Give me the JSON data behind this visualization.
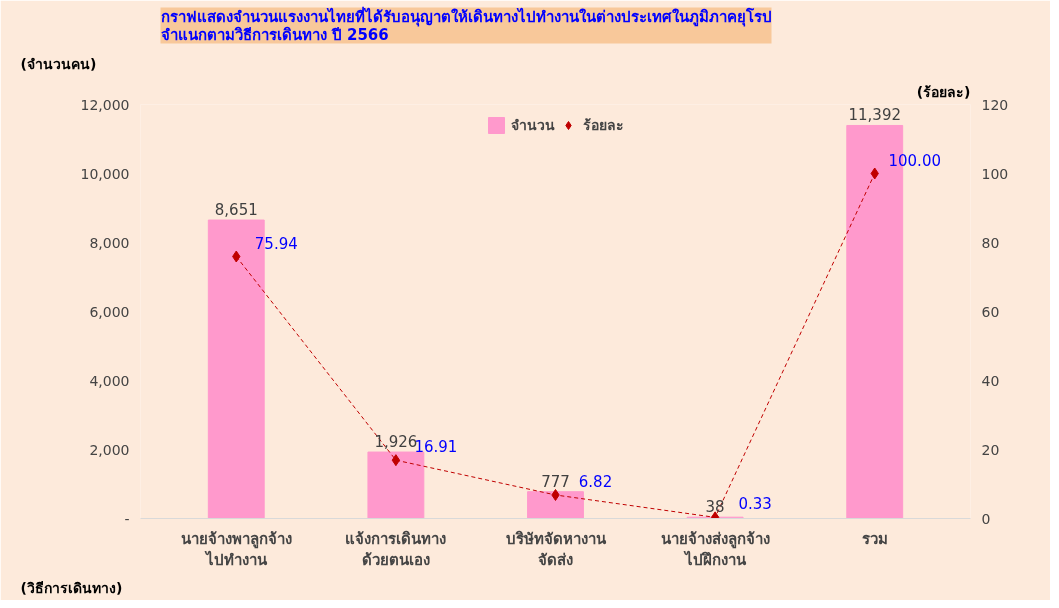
{
  "chart_data": {
    "type": "bar",
    "title": "กราฟแสดงจำนวนแรงงานไทยที่ได้รับอนุญาตให้เดินทางไปทำงานในต่างประเทศในภูมิภาคยุโรป\nจำแนกตามวิธีการเดินทาง  ปี 2566",
    "xlabel": "(วิธีการเดินทาง)",
    "ylabel": "(จำนวนคน)",
    "y2label": "(ร้อยละ)",
    "categories": [
      "นายจ้างพาลูกจ้าง\nไปทำงาน",
      "แจ้งการเดินทาง\nด้วยตนเอง",
      "บริษัทจัดหางาน\nจัดส่ง",
      "นายจ้างส่งลูกจ้าง\nไปฝึกงาน",
      "รวม"
    ],
    "series": [
      {
        "name": "จำนวน",
        "color": "#ff99cc",
        "values": [
          8651,
          1926,
          777,
          38,
          11392
        ],
        "value_labels": [
          "8,651",
          "1,926",
          "777",
          "38",
          "11,392"
        ]
      },
      {
        "name": "ร้อยละ",
        "type": "line",
        "axis": "y2",
        "color": "#c00000",
        "marker": "diamond",
        "line_style": "dashed",
        "values": [
          75.94,
          16.91,
          6.82,
          0.33,
          100.0
        ],
        "value_labels": [
          "75.94",
          "16.91",
          "6.82",
          "0.33",
          "100.00"
        ]
      }
    ],
    "ylim": [
      0,
      12000
    ],
    "yticks": [
      {
        "value": 0,
        "label": "-"
      },
      {
        "value": 2000,
        "label": "2,000"
      },
      {
        "value": 4000,
        "label": "4,000"
      },
      {
        "value": 6000,
        "label": "6,000"
      },
      {
        "value": 8000,
        "label": "8,000"
      },
      {
        "value": 10000,
        "label": "10,000"
      },
      {
        "value": 12000,
        "label": "12,000"
      }
    ],
    "y2lim": [
      0,
      120
    ],
    "y2ticks": [
      0,
      20,
      40,
      60,
      80,
      100,
      120
    ],
    "grid": false,
    "legend": "top"
  }
}
